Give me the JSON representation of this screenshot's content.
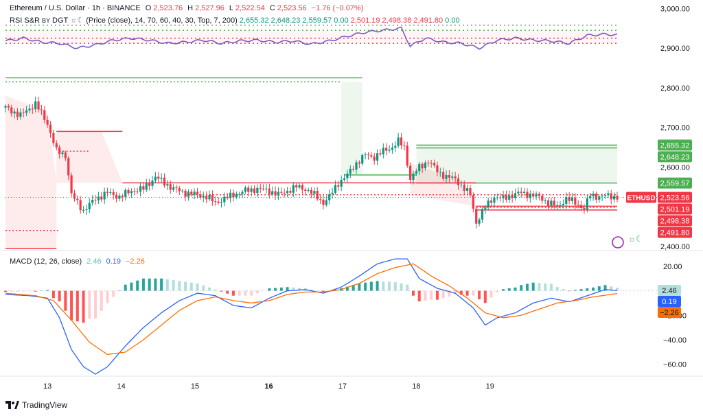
{
  "header": {
    "symbol": "Ethereum / U.S. Dollar · 1h · BINANCE",
    "o_label": "O",
    "o_value": "2,523.76",
    "h_label": "H",
    "h_value": "2,527.96",
    "l_label": "L",
    "l_value": "2,522.54",
    "c_label": "C",
    "c_value": "2,523.56",
    "change": "−1.76 (−0.07%)"
  },
  "rsi_legend": {
    "name": "RSI S&R",
    "by": "BY",
    "author": "DGT",
    "params": "(Price (close), 14, 70, 60, 40, 30, Top, 7, 200)",
    "values": [
      "2,655.32",
      "2,648.23",
      "2,559.57",
      "0.00",
      "2,501.19",
      "2,498.38",
      "2,491.80",
      "0.00"
    ]
  },
  "macd_legend": {
    "name": "MACD (12, 26, close)",
    "hist": "2.46",
    "macd": "0.19",
    "signal": "−2.26"
  },
  "colors": {
    "up": "#089981",
    "down": "#f23645",
    "macd": "#2962ff",
    "signal": "#ff6d00",
    "rsi": "#7e57c2",
    "support": "#4caf50",
    "resistance": "#f23645"
  },
  "brand": "TradingView",
  "symbol_tag": "ETHUSD",
  "chart_data": {
    "type": "candlestick",
    "price_axis": {
      "ticks": [
        2400,
        2500,
        2600,
        2700,
        2800,
        2900,
        3000
      ],
      "tick_labels": [
        "2,400.00",
        "2,500.00",
        "2,600.00",
        "2,700.00",
        "2,800.00",
        "2,900.00",
        "3,000.00"
      ],
      "range": [
        2398,
        3004
      ]
    },
    "time_axis": {
      "labels": [
        "13",
        "14",
        "15",
        "16",
        "17",
        "18",
        "19"
      ],
      "bold": [
        false,
        false,
        false,
        true,
        false,
        false,
        false
      ]
    },
    "price_labels": [
      {
        "value": 2655.32,
        "text": "2,655.32",
        "kind": "support"
      },
      {
        "value": 2648.23,
        "text": "2,648.23",
        "kind": "support"
      },
      {
        "value": 2559.57,
        "text": "2,559.57",
        "kind": "support"
      },
      {
        "value": 2523.56,
        "text": "2,523.56",
        "kind": "last"
      },
      {
        "value": 2501.19,
        "text": "2,501.19",
        "kind": "resistance"
      },
      {
        "value": 2498.38,
        "text": "2,498.38",
        "kind": "resistance"
      },
      {
        "value": 2491.8,
        "text": "2,491.80",
        "kind": "resistance"
      }
    ],
    "close_path": [
      [
        0,
        2750
      ],
      [
        5,
        2730
      ],
      [
        10,
        2760
      ],
      [
        14,
        2710
      ],
      [
        17,
        2640
      ],
      [
        20,
        2630
      ],
      [
        22,
        2530
      ],
      [
        26,
        2490
      ],
      [
        30,
        2520
      ],
      [
        34,
        2535
      ],
      [
        38,
        2525
      ],
      [
        42,
        2540
      ],
      [
        46,
        2545
      ],
      [
        48,
        2560
      ],
      [
        50,
        2575
      ],
      [
        53,
        2560
      ],
      [
        56,
        2545
      ],
      [
        60,
        2535
      ],
      [
        64,
        2530
      ],
      [
        67,
        2525
      ],
      [
        70,
        2510
      ],
      [
        73,
        2520
      ],
      [
        76,
        2530
      ],
      [
        80,
        2540
      ],
      [
        84,
        2545
      ],
      [
        88,
        2540
      ],
      [
        91,
        2530
      ],
      [
        94,
        2540
      ],
      [
        97,
        2550
      ],
      [
        100,
        2545
      ],
      [
        103,
        2530
      ],
      [
        106,
        2510
      ],
      [
        108,
        2525
      ],
      [
        111,
        2560
      ],
      [
        114,
        2580
      ],
      [
        117,
        2610
      ],
      [
        120,
        2630
      ],
      [
        123,
        2625
      ],
      [
        126,
        2640
      ],
      [
        129,
        2650
      ],
      [
        131,
        2665
      ],
      [
        133,
        2650
      ],
      [
        135,
        2570
      ],
      [
        138,
        2600
      ],
      [
        141,
        2615
      ],
      [
        144,
        2590
      ],
      [
        147,
        2575
      ],
      [
        150,
        2570
      ],
      [
        153,
        2545
      ],
      [
        155,
        2530
      ],
      [
        157,
        2460
      ],
      [
        160,
        2500
      ],
      [
        163,
        2525
      ],
      [
        166,
        2520
      ],
      [
        169,
        2530
      ],
      [
        172,
        2535
      ],
      [
        175,
        2530
      ],
      [
        178,
        2525
      ],
      [
        181,
        2510
      ],
      [
        184,
        2500
      ],
      [
        187,
        2520
      ],
      [
        190,
        2510
      ],
      [
        193,
        2495
      ],
      [
        195,
        2530
      ],
      [
        198,
        2525
      ],
      [
        201,
        2528
      ],
      [
        204,
        2524
      ]
    ],
    "rsi_sr": {
      "support_levels": [
        {
          "value": 2825,
          "from": 0,
          "to": 119
        },
        {
          "value": 2815,
          "from": 0,
          "to": 112
        },
        {
          "value": 2655.32,
          "from": 137,
          "to": 204
        },
        {
          "value": 2648.23,
          "from": 137,
          "to": 204
        },
        {
          "value": 2580,
          "from": 113,
          "to": 137
        },
        {
          "value": 2559.57,
          "from": 137,
          "to": 204
        }
      ],
      "resistance_levels": [
        {
          "value": 2690,
          "from": 17,
          "to": 39
        },
        {
          "value": 2640,
          "from": 18,
          "to": 28
        },
        {
          "value": 2560,
          "from": 39,
          "to": 157
        },
        {
          "value": 2530,
          "from": 60,
          "to": 204
        },
        {
          "value": 2501.19,
          "from": 157,
          "to": 204
        },
        {
          "value": 2498.38,
          "from": 157,
          "to": 204
        },
        {
          "value": 2491.8,
          "from": 157,
          "to": 204
        },
        {
          "value": 2440,
          "from": 0,
          "to": 18
        },
        {
          "value": 2395,
          "from": 0,
          "to": 17
        }
      ],
      "rsi_line": [
        [
          0,
          2918
        ],
        [
          6,
          2925
        ],
        [
          12,
          2915
        ],
        [
          18,
          2912
        ],
        [
          24,
          2900
        ],
        [
          30,
          2908
        ],
        [
          36,
          2920
        ],
        [
          42,
          2925
        ],
        [
          48,
          2920
        ],
        [
          54,
          2912
        ],
        [
          60,
          2915
        ],
        [
          66,
          2920
        ],
        [
          72,
          2912
        ],
        [
          78,
          2918
        ],
        [
          84,
          2920
        ],
        [
          90,
          2915
        ],
        [
          96,
          2918
        ],
        [
          102,
          2910
        ],
        [
          108,
          2918
        ],
        [
          114,
          2930
        ],
        [
          120,
          2940
        ],
        [
          126,
          2945
        ],
        [
          132,
          2950
        ],
        [
          135,
          2905
        ],
        [
          140,
          2925
        ],
        [
          146,
          2915
        ],
        [
          152,
          2912
        ],
        [
          158,
          2900
        ],
        [
          164,
          2920
        ],
        [
          170,
          2925
        ],
        [
          176,
          2920
        ],
        [
          182,
          2918
        ],
        [
          188,
          2912
        ],
        [
          194,
          2932
        ],
        [
          200,
          2935
        ],
        [
          204,
          2933
        ]
      ]
    },
    "macd": {
      "axis_ticks": [
        20,
        0,
        -20,
        -40,
        -60
      ],
      "tick_labels": [
        "20.00",
        "0.00",
        "−20.00",
        "−40.00",
        "−60.00"
      ],
      "range": [
        -68,
        30
      ],
      "macd_line": [
        [
          0,
          -3
        ],
        [
          8,
          -4
        ],
        [
          14,
          -6
        ],
        [
          18,
          -22
        ],
        [
          22,
          -48
        ],
        [
          26,
          -62
        ],
        [
          30,
          -68
        ],
        [
          34,
          -62
        ],
        [
          40,
          -45
        ],
        [
          46,
          -30
        ],
        [
          52,
          -18
        ],
        [
          58,
          -8
        ],
        [
          64,
          -2
        ],
        [
          70,
          -4
        ],
        [
          76,
          -12
        ],
        [
          82,
          -14
        ],
        [
          88,
          -6
        ],
        [
          94,
          0
        ],
        [
          100,
          1
        ],
        [
          106,
          -2
        ],
        [
          112,
          3
        ],
        [
          118,
          12
        ],
        [
          124,
          22
        ],
        [
          130,
          26
        ],
        [
          134,
          26
        ],
        [
          138,
          10
        ],
        [
          144,
          2
        ],
        [
          150,
          -2
        ],
        [
          156,
          -14
        ],
        [
          160,
          -28
        ],
        [
          164,
          -22
        ],
        [
          170,
          -18
        ],
        [
          176,
          -10
        ],
        [
          182,
          -6
        ],
        [
          188,
          -9
        ],
        [
          194,
          -4
        ],
        [
          200,
          1
        ],
        [
          204,
          0.19
        ]
      ],
      "signal_line": [
        [
          0,
          -2
        ],
        [
          10,
          -4
        ],
        [
          16,
          -8
        ],
        [
          22,
          -24
        ],
        [
          28,
          -42
        ],
        [
          34,
          -52
        ],
        [
          40,
          -50
        ],
        [
          46,
          -40
        ],
        [
          52,
          -28
        ],
        [
          58,
          -16
        ],
        [
          64,
          -8
        ],
        [
          70,
          -5
        ],
        [
          76,
          -8
        ],
        [
          82,
          -10
        ],
        [
          88,
          -8
        ],
        [
          94,
          -3
        ],
        [
          100,
          -1
        ],
        [
          106,
          -1
        ],
        [
          112,
          1
        ],
        [
          118,
          6
        ],
        [
          124,
          14
        ],
        [
          130,
          19
        ],
        [
          136,
          22
        ],
        [
          142,
          12
        ],
        [
          148,
          4
        ],
        [
          154,
          -6
        ],
        [
          160,
          -18
        ],
        [
          166,
          -22
        ],
        [
          172,
          -20
        ],
        [
          178,
          -15
        ],
        [
          184,
          -10
        ],
        [
          190,
          -8
        ],
        [
          196,
          -5
        ],
        [
          204,
          -2.26
        ]
      ]
    }
  }
}
